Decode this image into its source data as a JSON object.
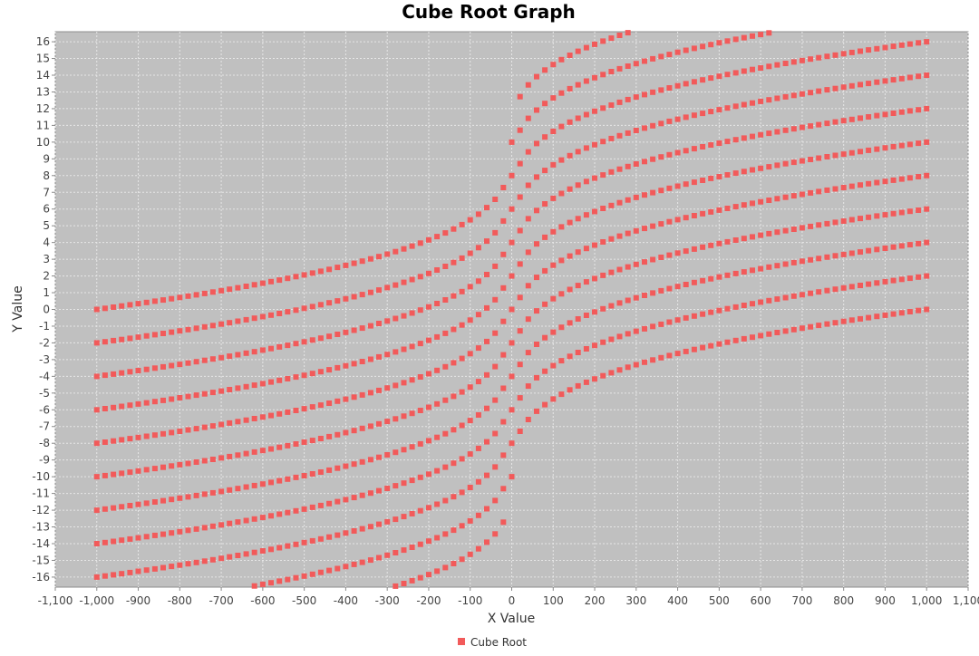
{
  "chart_data": {
    "type": "scatter",
    "title": "Cube Root Graph",
    "xlabel": "X Value",
    "ylabel": "Y Value",
    "xlim": [
      -1100,
      1100
    ],
    "ylim": [
      -16.6,
      16.6
    ],
    "xticks": [
      -1100,
      -1000,
      -900,
      -800,
      -700,
      -600,
      -500,
      -400,
      -300,
      -200,
      -100,
      0,
      100,
      200,
      300,
      400,
      500,
      600,
      700,
      800,
      900,
      1000,
      1100
    ],
    "yticks": [
      -16,
      -15,
      -14,
      -13,
      -12,
      -11,
      -10,
      -9,
      -8,
      -7,
      -6,
      -5,
      -4,
      -3,
      -2,
      -1,
      0,
      1,
      2,
      3,
      4,
      5,
      6,
      7,
      8,
      9,
      10,
      11,
      12,
      13,
      14,
      15,
      16
    ],
    "grid": true,
    "legend_position": "bottom-center",
    "colors": {
      "series": "#f25a5a",
      "plot_bg": "#c0c0c0",
      "grid": "#e6e6e6"
    },
    "series": [
      {
        "name": "Cube Root",
        "description": "y = cbrt(x) + k for k in {-10,-8,-6,-4,-2,0,2,4,6,8,10}, x sampled every 20 from -1000 to 1000",
        "offsets": [
          -10,
          -8,
          -6,
          -4,
          -2,
          0,
          2,
          4,
          6,
          8,
          10
        ],
        "x_start": -1000,
        "x_end": 1000,
        "x_step": 20
      }
    ]
  }
}
